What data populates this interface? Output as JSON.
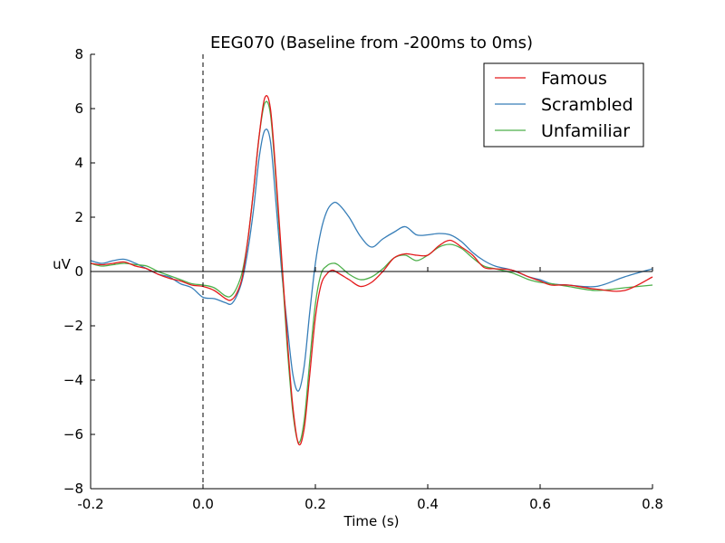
{
  "chart_data": {
    "type": "line",
    "title": "EEG070 (Baseline from -200ms to 0ms)",
    "xlabel": "Time (s)",
    "ylabel": "uV",
    "xlim": [
      -0.2,
      0.8
    ],
    "ylim": [
      -8,
      8
    ],
    "x_ticks": [
      -0.2,
      0.0,
      0.2,
      0.4,
      0.6,
      0.8
    ],
    "x_tick_labels": [
      "-0.2",
      "0.0",
      "0.2",
      "0.4",
      "0.6",
      "0.8"
    ],
    "y_ticks": [
      -8,
      -6,
      -4,
      -2,
      0,
      2,
      4,
      6,
      8
    ],
    "y_tick_labels": [
      "−8",
      "−6",
      "−4",
      "−2",
      "0",
      "2",
      "4",
      "6",
      "8"
    ],
    "zero_line": true,
    "stimulus_onset_line_x": 0.0,
    "grid": false,
    "legend": "top-right",
    "series": [
      {
        "name": "Famous",
        "color": "#e41a1c",
        "points": [
          [
            -0.2,
            0.3
          ],
          [
            -0.18,
            0.25
          ],
          [
            -0.16,
            0.3
          ],
          [
            -0.14,
            0.35
          ],
          [
            -0.12,
            0.2
          ],
          [
            -0.1,
            0.1
          ],
          [
            -0.08,
            -0.1
          ],
          [
            -0.06,
            -0.25
          ],
          [
            -0.04,
            -0.35
          ],
          [
            -0.02,
            -0.5
          ],
          [
            0.0,
            -0.55
          ],
          [
            0.02,
            -0.7
          ],
          [
            0.04,
            -1.0
          ],
          [
            0.05,
            -1.05
          ],
          [
            0.06,
            -0.8
          ],
          [
            0.07,
            -0.2
          ],
          [
            0.08,
            1.2
          ],
          [
            0.09,
            3.0
          ],
          [
            0.1,
            5.0
          ],
          [
            0.11,
            6.4
          ],
          [
            0.12,
            6.0
          ],
          [
            0.13,
            3.5
          ],
          [
            0.14,
            0.5
          ],
          [
            0.15,
            -2.5
          ],
          [
            0.16,
            -5.0
          ],
          [
            0.17,
            -6.35
          ],
          [
            0.18,
            -5.8
          ],
          [
            0.19,
            -3.8
          ],
          [
            0.2,
            -1.7
          ],
          [
            0.21,
            -0.5
          ],
          [
            0.22,
            -0.1
          ],
          [
            0.23,
            0.05
          ],
          [
            0.24,
            -0.05
          ],
          [
            0.26,
            -0.3
          ],
          [
            0.28,
            -0.55
          ],
          [
            0.3,
            -0.4
          ],
          [
            0.32,
            0.0
          ],
          [
            0.34,
            0.5
          ],
          [
            0.36,
            0.65
          ],
          [
            0.38,
            0.6
          ],
          [
            0.4,
            0.6
          ],
          [
            0.42,
            0.95
          ],
          [
            0.44,
            1.15
          ],
          [
            0.46,
            0.9
          ],
          [
            0.48,
            0.6
          ],
          [
            0.5,
            0.15
          ],
          [
            0.52,
            0.1
          ],
          [
            0.55,
            0.05
          ],
          [
            0.58,
            -0.2
          ],
          [
            0.6,
            -0.35
          ],
          [
            0.62,
            -0.5
          ],
          [
            0.65,
            -0.5
          ],
          [
            0.7,
            -0.65
          ],
          [
            0.75,
            -0.7
          ],
          [
            0.8,
            -0.2
          ]
        ]
      },
      {
        "name": "Scrambled",
        "color": "#377eb8",
        "points": [
          [
            -0.2,
            0.4
          ],
          [
            -0.18,
            0.3
          ],
          [
            -0.16,
            0.4
          ],
          [
            -0.14,
            0.45
          ],
          [
            -0.12,
            0.3
          ],
          [
            -0.1,
            0.1
          ],
          [
            -0.08,
            -0.1
          ],
          [
            -0.06,
            -0.2
          ],
          [
            -0.04,
            -0.45
          ],
          [
            -0.02,
            -0.6
          ],
          [
            0.0,
            -0.95
          ],
          [
            0.02,
            -1.0
          ],
          [
            0.04,
            -1.15
          ],
          [
            0.05,
            -1.2
          ],
          [
            0.06,
            -0.9
          ],
          [
            0.07,
            -0.3
          ],
          [
            0.08,
            0.8
          ],
          [
            0.09,
            2.3
          ],
          [
            0.1,
            4.2
          ],
          [
            0.11,
            5.2
          ],
          [
            0.12,
            4.8
          ],
          [
            0.13,
            2.5
          ],
          [
            0.14,
            0.0
          ],
          [
            0.15,
            -2.0
          ],
          [
            0.16,
            -3.8
          ],
          [
            0.17,
            -4.4
          ],
          [
            0.18,
            -3.5
          ],
          [
            0.19,
            -1.5
          ],
          [
            0.2,
            0.3
          ],
          [
            0.21,
            1.5
          ],
          [
            0.22,
            2.2
          ],
          [
            0.23,
            2.5
          ],
          [
            0.24,
            2.5
          ],
          [
            0.26,
            2.0
          ],
          [
            0.28,
            1.3
          ],
          [
            0.3,
            0.9
          ],
          [
            0.32,
            1.2
          ],
          [
            0.34,
            1.45
          ],
          [
            0.36,
            1.65
          ],
          [
            0.38,
            1.35
          ],
          [
            0.4,
            1.35
          ],
          [
            0.42,
            1.4
          ],
          [
            0.44,
            1.35
          ],
          [
            0.46,
            1.1
          ],
          [
            0.48,
            0.7
          ],
          [
            0.5,
            0.4
          ],
          [
            0.52,
            0.2
          ],
          [
            0.55,
            0.05
          ],
          [
            0.58,
            -0.2
          ],
          [
            0.6,
            -0.3
          ],
          [
            0.62,
            -0.45
          ],
          [
            0.65,
            -0.5
          ],
          [
            0.7,
            -0.55
          ],
          [
            0.75,
            -0.2
          ],
          [
            0.8,
            0.1
          ]
        ]
      },
      {
        "name": "Unfamiliar",
        "color": "#4daf4a",
        "points": [
          [
            -0.2,
            0.3
          ],
          [
            -0.18,
            0.2
          ],
          [
            -0.16,
            0.25
          ],
          [
            -0.14,
            0.3
          ],
          [
            -0.12,
            0.25
          ],
          [
            -0.1,
            0.2
          ],
          [
            -0.08,
            0.0
          ],
          [
            -0.06,
            -0.15
          ],
          [
            -0.04,
            -0.3
          ],
          [
            -0.02,
            -0.45
          ],
          [
            0.0,
            -0.5
          ],
          [
            0.02,
            -0.6
          ],
          [
            0.04,
            -0.9
          ],
          [
            0.05,
            -0.9
          ],
          [
            0.06,
            -0.6
          ],
          [
            0.07,
            0.0
          ],
          [
            0.08,
            1.2
          ],
          [
            0.09,
            3.0
          ],
          [
            0.1,
            5.0
          ],
          [
            0.11,
            6.2
          ],
          [
            0.12,
            5.8
          ],
          [
            0.13,
            3.3
          ],
          [
            0.14,
            0.3
          ],
          [
            0.15,
            -2.8
          ],
          [
            0.16,
            -5.2
          ],
          [
            0.17,
            -6.3
          ],
          [
            0.18,
            -5.5
          ],
          [
            0.19,
            -3.3
          ],
          [
            0.2,
            -1.2
          ],
          [
            0.21,
            -0.1
          ],
          [
            0.22,
            0.2
          ],
          [
            0.23,
            0.3
          ],
          [
            0.24,
            0.25
          ],
          [
            0.26,
            -0.1
          ],
          [
            0.28,
            -0.3
          ],
          [
            0.3,
            -0.2
          ],
          [
            0.32,
            0.1
          ],
          [
            0.34,
            0.5
          ],
          [
            0.36,
            0.6
          ],
          [
            0.38,
            0.4
          ],
          [
            0.4,
            0.6
          ],
          [
            0.42,
            0.9
          ],
          [
            0.44,
            1.0
          ],
          [
            0.46,
            0.85
          ],
          [
            0.48,
            0.5
          ],
          [
            0.5,
            0.2
          ],
          [
            0.52,
            0.1
          ],
          [
            0.55,
            -0.05
          ],
          [
            0.58,
            -0.3
          ],
          [
            0.6,
            -0.4
          ],
          [
            0.62,
            -0.45
          ],
          [
            0.65,
            -0.55
          ],
          [
            0.7,
            -0.7
          ],
          [
            0.75,
            -0.6
          ],
          [
            0.8,
            -0.5
          ]
        ]
      }
    ]
  }
}
